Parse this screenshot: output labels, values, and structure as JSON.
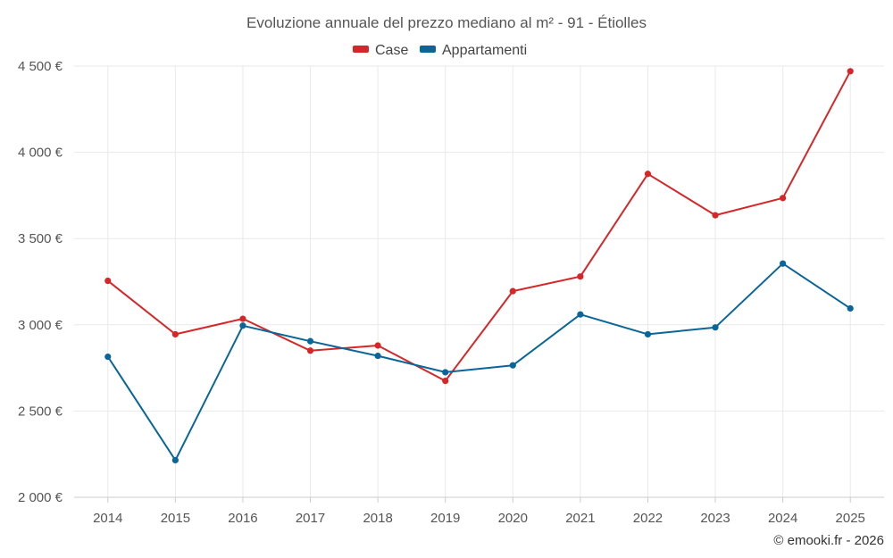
{
  "colors": {
    "case": "#d62728",
    "appartamenti": "#0a6599"
  },
  "chart_data": {
    "type": "line",
    "title": "Evoluzione annuale del prezzo mediano al m² - 91 - Étiolles",
    "categories": [
      "2014",
      "2015",
      "2016",
      "2017",
      "2018",
      "2019",
      "2020",
      "2021",
      "2022",
      "2023",
      "2024",
      "2025"
    ],
    "series": [
      {
        "name": "Case",
        "values": [
          3255,
          2945,
          3035,
          2850,
          2880,
          2675,
          3195,
          3280,
          3875,
          3635,
          3735,
          4470
        ]
      },
      {
        "name": "Appartamenti",
        "values": [
          2815,
          2215,
          2995,
          2905,
          2820,
          2725,
          2765,
          3060,
          2945,
          2985,
          3355,
          3095
        ]
      }
    ],
    "ylim": [
      2000,
      4500
    ],
    "yticks": [
      2000,
      2500,
      3000,
      3500,
      4000,
      4500
    ],
    "ytick_labels": [
      "2 000 €",
      "2 500 €",
      "3 000 €",
      "3 500 €",
      "4 000 €",
      "4 500 €"
    ],
    "legend": "top-center",
    "grid": true,
    "credit": "© emooki.fr - 2026"
  }
}
